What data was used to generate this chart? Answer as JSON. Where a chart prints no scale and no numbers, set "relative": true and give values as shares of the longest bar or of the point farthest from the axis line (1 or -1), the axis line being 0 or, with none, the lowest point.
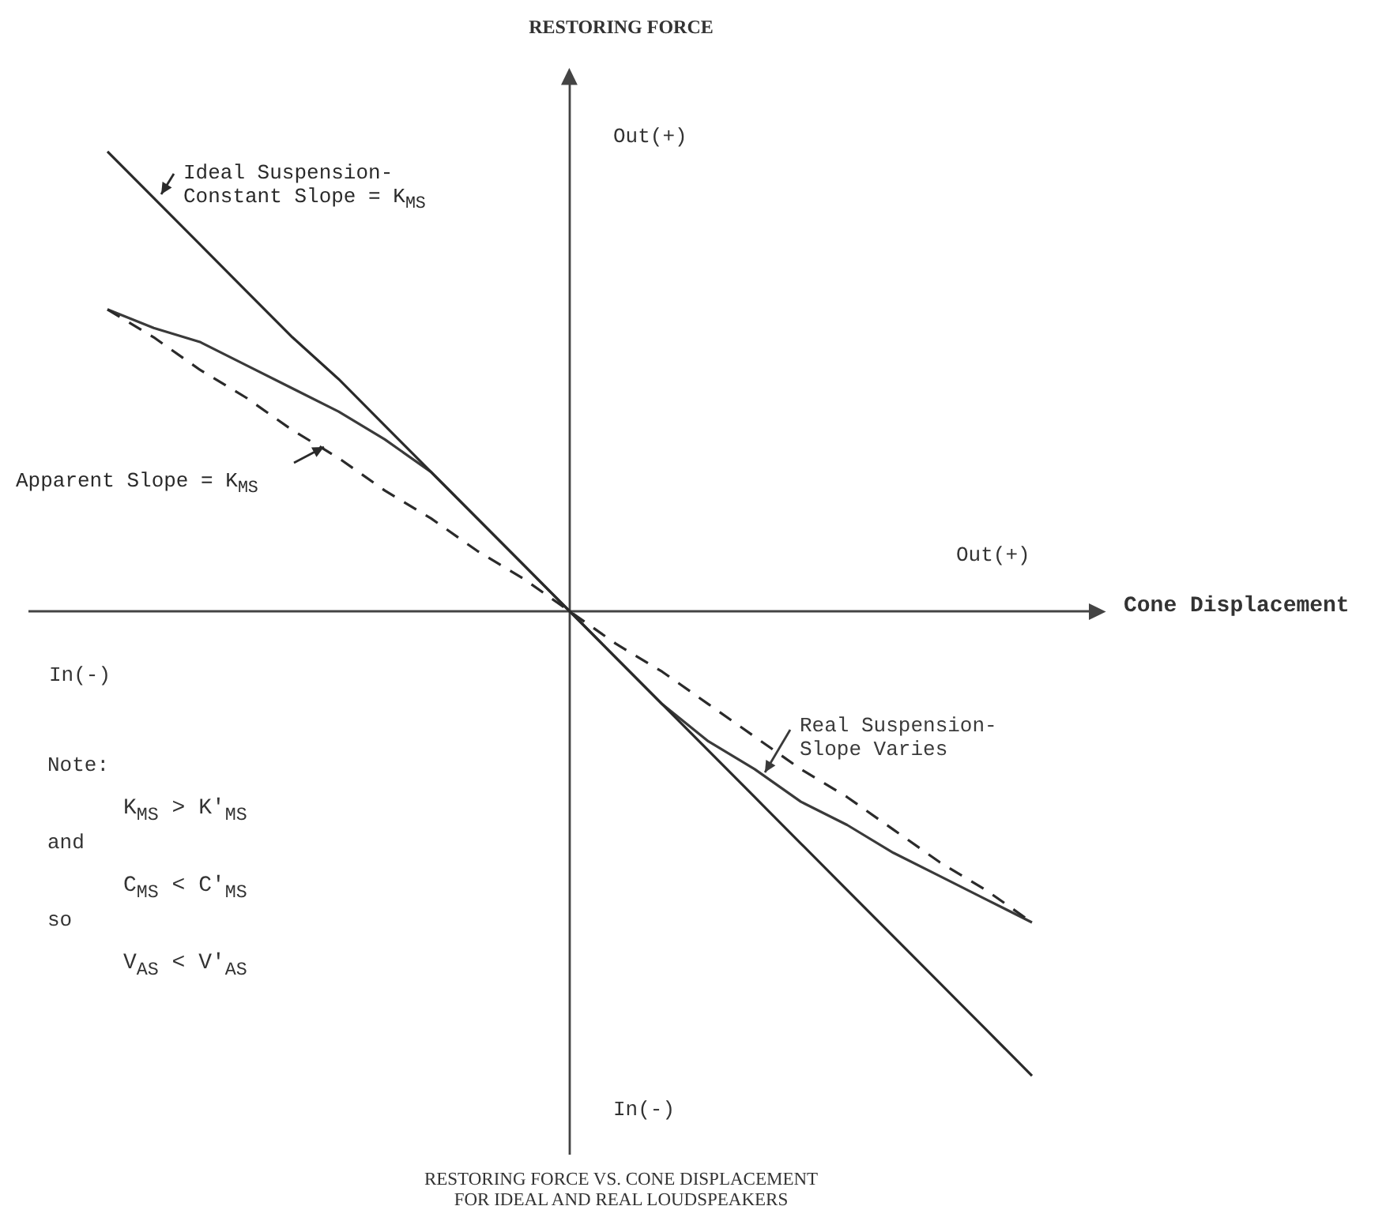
{
  "chart_data": {
    "type": "line",
    "relative": true,
    "title": "RESTORING FORCE VS. CONE DISPLACEMENT\nFOR IDEAL AND REAL LOUDSPEAKERS",
    "xlabel": "Cone Displacement",
    "legend": "top left",
    "marker": "none",
    "categories": [
      null,
      null,
      null,
      null,
      null,
      null,
      null,
      null,
      null,
      null,
      null,
      null,
      null,
      null,
      null,
      null,
      null,
      null,
      null,
      null,
      null
    ],
    "series": [
      {
        "name": "Ideal Suspension-\nConstant Slope = K$_{MS}$",
        "color": "#2a2a2a",
        "values": [
          0.99,
          0.89,
          0.79,
          0.69,
          0.59,
          0.5,
          0.4,
          0.3,
          0.2,
          0.1,
          0,
          -0.1,
          -0.2,
          -0.3,
          -0.4,
          -0.5,
          -0.6,
          -0.7,
          -0.8,
          -0.9,
          -1
        ]
      },
      {
        "name": "Apparent Slope = K$_{MS}$",
        "color": "#2a2a2a",
        "line_style": "dashed",
        "values": [
          0.65,
          0.59,
          0.52,
          0.46,
          0.39,
          0.33,
          0.26,
          0.2,
          0.13,
          0.07,
          0,
          -0.07,
          -0.13,
          -0.2,
          -0.27,
          -0.34,
          -0.4,
          -0.47,
          -0.54,
          -0.6,
          -0.67
        ]
      },
      {
        "name": "Real Suspension-\nSlope Varies",
        "color": "#3a3a3a",
        "values": [
          0.65,
          0.61,
          0.58,
          0.53,
          0.48,
          0.43,
          0.37,
          0.3,
          0.2,
          0.1,
          0,
          -0.1,
          -0.2,
          -0.28,
          -0.34,
          -0.41,
          -0.46,
          -0.52,
          -0.57,
          -0.62,
          -0.67
        ]
      }
    ],
    "annotations": [
      "Out(+)",
      "Out(+)",
      "In(-)",
      "In(-)",
      "Note:",
      "K$_{MS}$ > K′$_{MS}$",
      "and",
      "C$_{MS}$ < C′$_{MS}$",
      "so",
      "V$_{AS}$ < V′$_{AS}$",
      "RESTORING FORCE"
    ]
  }
}
